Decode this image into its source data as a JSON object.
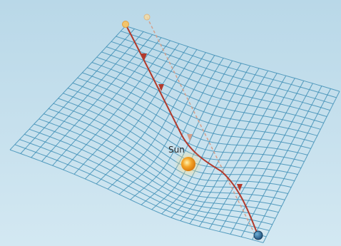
{
  "diagram": {
    "sun_label": "Sun",
    "colors": {
      "background_top": "#b9d8e8",
      "background_bottom": "#d3e8f2",
      "grid": "#3f8fb6",
      "light_path_actual": "#b23a2c",
      "light_path_apparent": "#d4a08c",
      "sun_core": "#f4a62a",
      "sun_glow": "#ffe08a",
      "star": "#f2c46a",
      "observer": "#1f4f7a"
    },
    "icons": {
      "sun": "sun-icon",
      "source_star": "star-icon",
      "apparent_star": "star-icon",
      "observer": "earth-icon"
    }
  }
}
